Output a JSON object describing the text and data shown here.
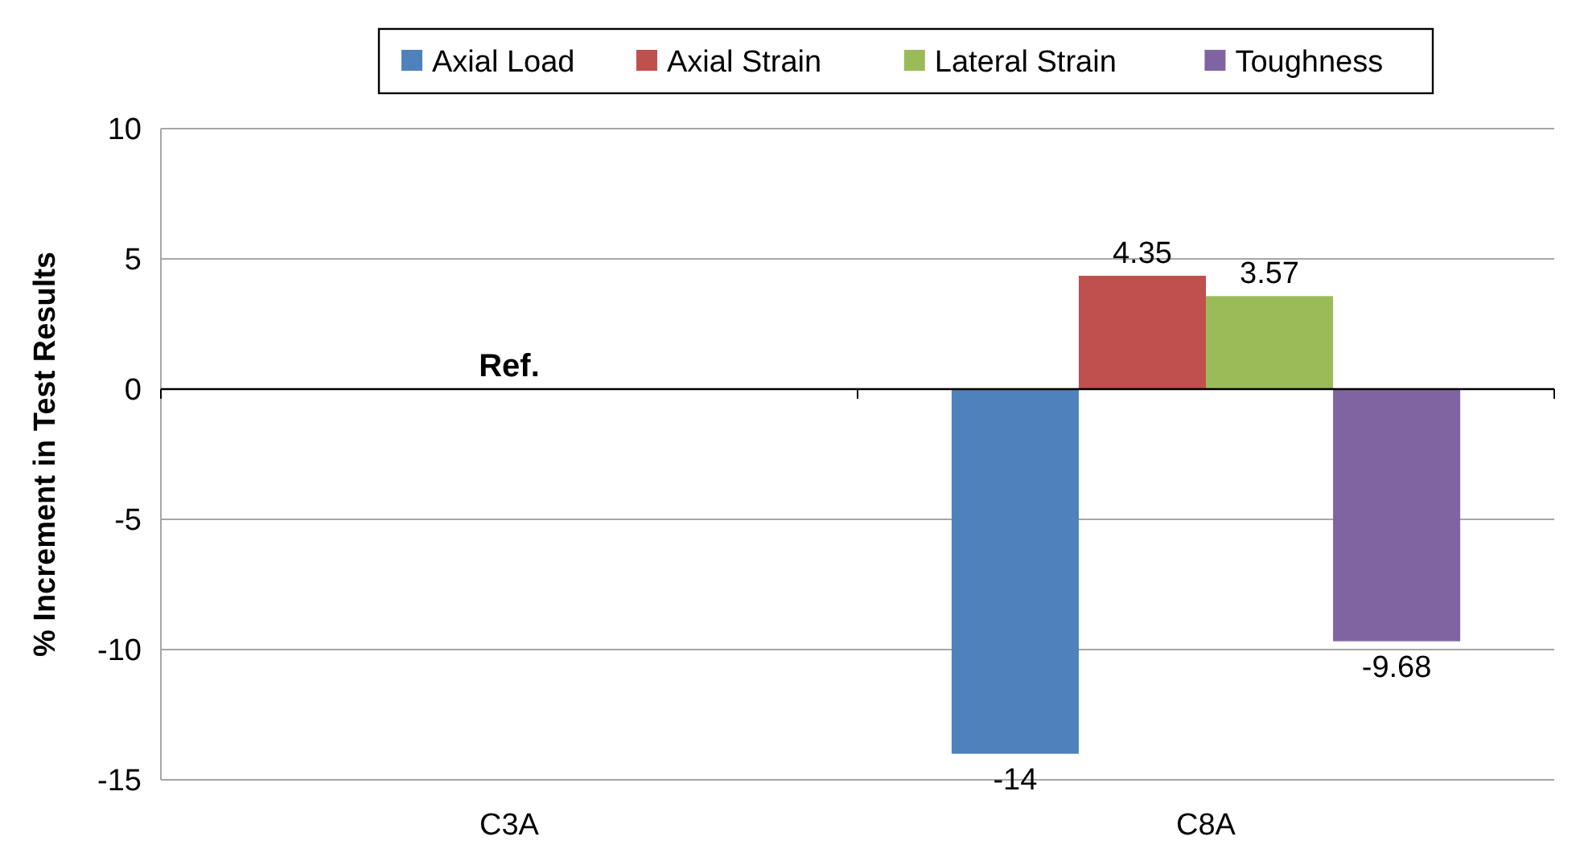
{
  "chart_data": {
    "type": "bar",
    "ylabel": "% Increment in Test Results",
    "categories": [
      "C3A",
      "C8A"
    ],
    "series": [
      {
        "name": "Axial Load",
        "color": "#4f81bd",
        "values": [
          0,
          -14
        ],
        "value_labels": [
          null,
          "-14"
        ]
      },
      {
        "name": "Axial Strain",
        "color": "#c0504d",
        "values": [
          0,
          4.35
        ],
        "value_labels": [
          null,
          "4.35"
        ]
      },
      {
        "name": "Lateral Strain",
        "color": "#9bbb59",
        "values": [
          0,
          3.57
        ],
        "value_labels": [
          null,
          "3.57"
        ]
      },
      {
        "name": "Toughness",
        "color": "#8064a2",
        "values": [
          0,
          -9.68
        ],
        "value_labels": [
          null,
          "-9.68"
        ]
      }
    ],
    "annotations": [
      {
        "text": "Ref.",
        "x": "C3A",
        "y": 0
      }
    ],
    "ylim": [
      -15,
      10
    ],
    "yticks": [
      -15,
      -10,
      -5,
      0,
      5,
      10
    ],
    "grid": "y",
    "legend": "top"
  }
}
